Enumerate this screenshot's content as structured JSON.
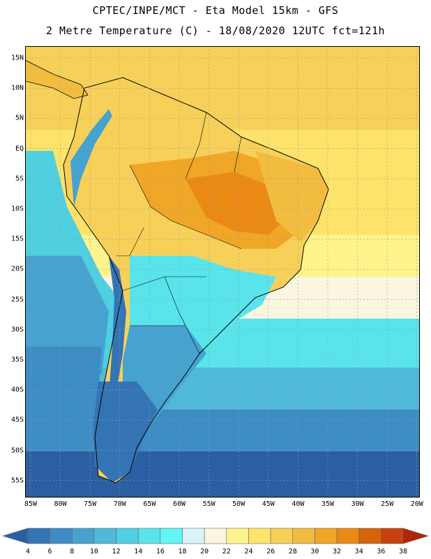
{
  "header": {
    "line1": "CPTEC/INPE/MCT -  Eta Model 15km - GFS",
    "line2": "2 Metre Temperature (C) - 18/08/2020 12UTC fct=121h"
  },
  "map": {
    "latitude_labels": [
      "15N",
      "10N",
      "5N",
      "EQ",
      "5S",
      "10S",
      "15S",
      "20S",
      "25S",
      "30S",
      "35S",
      "40S",
      "45S",
      "50S",
      "55S"
    ],
    "longitude_labels": [
      "85W",
      "80W",
      "75W",
      "70W",
      "65W",
      "60W",
      "55W",
      "50W",
      "45W",
      "40W",
      "35W",
      "30W",
      "25W",
      "20W"
    ]
  },
  "colorbar": {
    "labels": [
      "4",
      "6",
      "8",
      "10",
      "12",
      "14",
      "16",
      "18",
      "20",
      "22",
      "24",
      "26",
      "28",
      "30",
      "32",
      "34",
      "36",
      "38"
    ],
    "colors": [
      "#2b5fa3",
      "#3474b5",
      "#3e8cc4",
      "#46a2cf",
      "#4fb9d9",
      "#4fcfe0",
      "#58e4ea",
      "#62f6f6",
      "#d8f4f8",
      "#fbf6e0",
      "#fff48c",
      "#fde36a",
      "#f7d05a",
      "#f2bc40",
      "#f0a626",
      "#ea8a14",
      "#d8640a",
      "#c94010",
      "#b02508"
    ],
    "unit": "C"
  }
}
